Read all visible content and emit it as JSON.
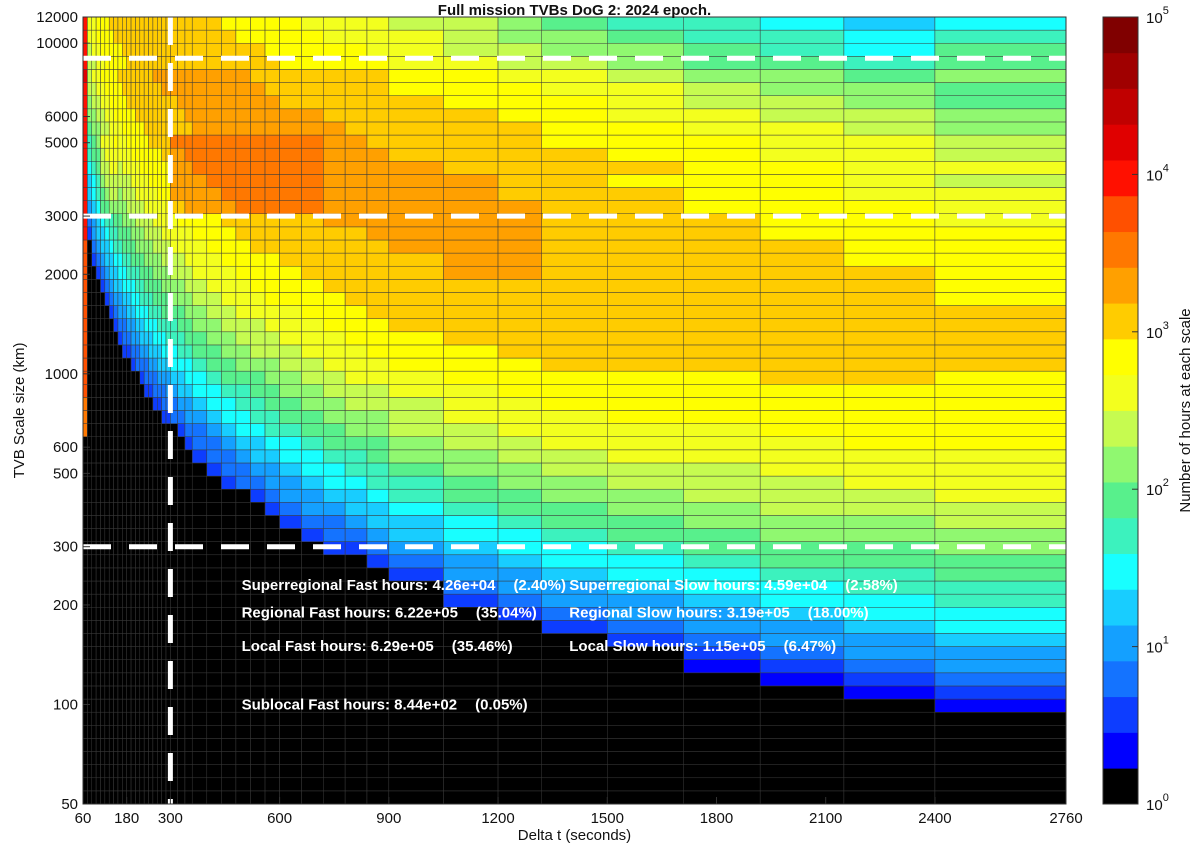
{
  "chart_data": {
    "type": "heatmap",
    "title": "Full mission TVBs DoG 2: 2024 epoch.",
    "xlabel": "Delta t (seconds)",
    "ylabel": "TVB Scale size (km)",
    "x_scale": "linear",
    "y_scale": "log",
    "xlim": [
      60,
      2760
    ],
    "ylim": [
      50,
      12000
    ],
    "x_ticks": [
      "60",
      "180",
      "300",
      "600",
      "900",
      "1200",
      "1500",
      "1800",
      "2100",
      "2400",
      "2760"
    ],
    "y_ticks": [
      "50",
      "100",
      "200",
      "300",
      "500",
      "600",
      "1000",
      "2000",
      "3000",
      "5000",
      "6000",
      "10000",
      "12000"
    ],
    "x_edges": [
      60,
      72,
      84,
      96,
      108,
      120,
      132,
      144,
      156,
      168,
      180,
      192,
      204,
      216,
      228,
      240,
      252,
      264,
      276,
      288,
      300,
      320,
      340,
      360,
      400,
      440,
      480,
      520,
      560,
      600,
      660,
      720,
      780,
      840,
      900,
      1050,
      1200,
      1320,
      1500,
      1710,
      1920,
      2150,
      2400,
      2760
    ],
    "y_edge_count": 60,
    "colorbar": {
      "label": "Number of hours at each scale",
      "scale": "log",
      "range": [
        1,
        100000
      ],
      "tick_labels": [
        [
          "10",
          "0"
        ],
        [
          "10",
          "1"
        ],
        [
          "10",
          "2"
        ],
        [
          "10",
          "3"
        ],
        [
          "10",
          "4"
        ],
        [
          "10",
          "5"
        ]
      ],
      "colors": [
        "#000000",
        "#0000ff",
        "#0d3dff",
        "#1473ff",
        "#14a0ff",
        "#18cdff",
        "#18ffff",
        "#3cf2be",
        "#58f08c",
        "#90f870",
        "#c6fb50",
        "#f3ff1e",
        "#ffff00",
        "#ffcc00",
        "#ffa000",
        "#ff7800",
        "#ff5000",
        "#ff1000",
        "#e00000",
        "#c00000",
        "#a00000",
        "#800000"
      ]
    },
    "threshold_lines": {
      "x": [
        300
      ],
      "y": [
        300,
        3000,
        9000
      ],
      "style": "white dashed"
    },
    "annotations": [
      {
        "text": "Superregional Fast hours: 4.26e+04",
        "pct": "(2.40%)",
        "anchor_dt": 600,
        "anchor_km": 230
      },
      {
        "text": "Superregional Slow hours: 4.59e+04",
        "pct": "(2.58%)",
        "anchor_dt": 1500,
        "anchor_km": 230
      },
      {
        "text": "Regional Fast hours: 6.22e+05",
        "pct": "(35.04%)",
        "anchor_dt": 600,
        "anchor_km": 190
      },
      {
        "text": "Regional Slow hours: 3.19e+05",
        "pct": "(18.00%)",
        "anchor_dt": 1500,
        "anchor_km": 190
      },
      {
        "text": "Local Fast hours: 6.29e+05",
        "pct": "(35.46%)",
        "anchor_dt": 600,
        "anchor_km": 150
      },
      {
        "text": "Local Slow hours: 1.15e+05",
        "pct": "(6.47%)",
        "anchor_dt": 1500,
        "anchor_km": 150
      },
      {
        "text": "Sublocal Fast hours: 8.44e+02",
        "pct": "(0.05%)",
        "anchor_dt": 600,
        "anchor_km": 100
      }
    ]
  }
}
